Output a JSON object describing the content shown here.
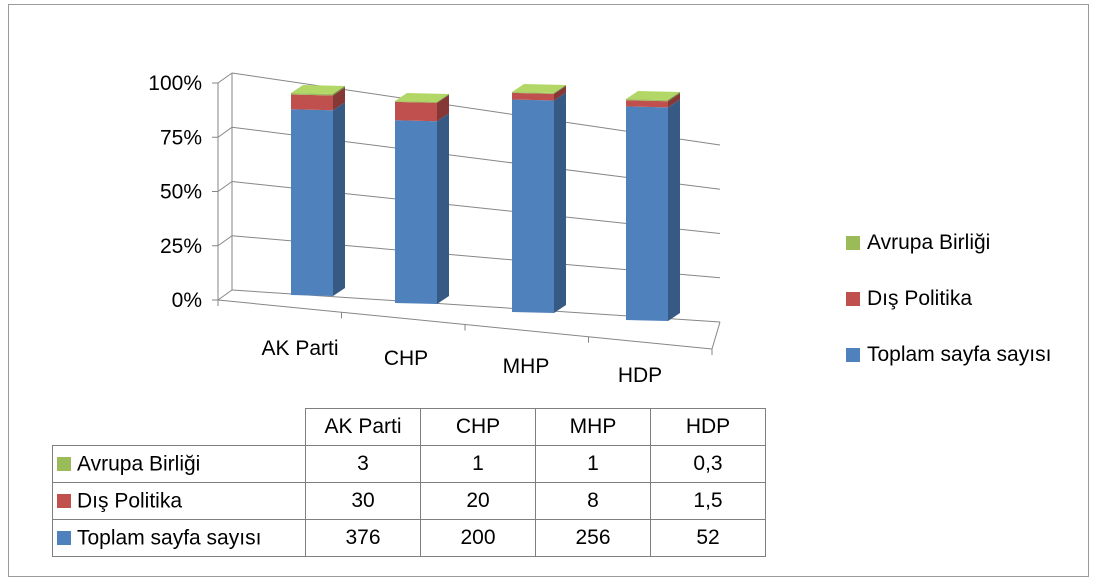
{
  "chart_data": {
    "type": "bar",
    "stacked": "100%",
    "three_d": true,
    "categories": [
      "AK Parti",
      "CHP",
      "MHP",
      "HDP"
    ],
    "series": [
      {
        "name": "Toplam sayfa sayısı",
        "values": [
          376,
          200,
          256,
          52
        ],
        "display": [
          "376",
          "200",
          "256",
          "52"
        ],
        "color": "#4f81bd"
      },
      {
        "name": "Dış Politika",
        "values": [
          30,
          20,
          8,
          1.5
        ],
        "display": [
          "30",
          "20",
          "8",
          "1,5"
        ],
        "color": "#c0504d"
      },
      {
        "name": "Avrupa Birliği",
        "values": [
          3,
          1,
          1,
          0.3
        ],
        "display": [
          "3",
          "1",
          "1",
          "0,3"
        ],
        "color": "#9bbb59"
      }
    ],
    "y_ticks": [
      "0%",
      "25%",
      "50%",
      "75%",
      "100%"
    ],
    "ylim": [
      0,
      100
    ],
    "grid": true,
    "legend_position": "right",
    "legend_order": [
      "Avrupa Birliği",
      "Dış Politika",
      "Toplam sayfa sayısı"
    ],
    "data_table": true
  }
}
